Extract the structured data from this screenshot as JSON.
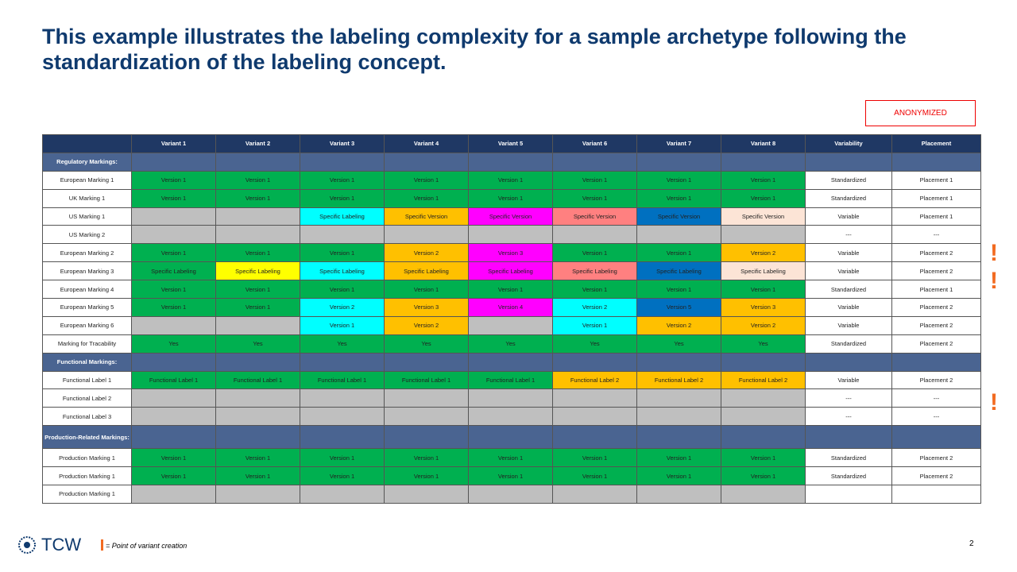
{
  "title": "This example illustrates the labeling complexity for a sample archetype following the standardization of the labeling concept.",
  "badge": "ANONYMIZED",
  "table": {
    "header": [
      "Variant 1",
      "Variant 2",
      "Variant 3",
      "Variant 4",
      "Variant 5",
      "Variant 6",
      "Variant 7",
      "Variant 8",
      "Variability",
      "Placement"
    ],
    "sections": [
      {
        "title": "Regulatory Markings:",
        "rows": [
          {
            "label": "European Marking 1",
            "cells": [
              {
                "text": "Version 1",
                "color": "#00b050"
              },
              {
                "text": "Version 1",
                "color": "#00b050"
              },
              {
                "text": "Version 1",
                "color": "#00b050"
              },
              {
                "text": "Version 1",
                "color": "#00b050"
              },
              {
                "text": "Version 1",
                "color": "#00b050"
              },
              {
                "text": "Version 1",
                "color": "#00b050"
              },
              {
                "text": "Version 1",
                "color": "#00b050"
              },
              {
                "text": "Version 1",
                "color": "#00b050"
              },
              {
                "text": "Standardized",
                "color": "#ffffff"
              },
              {
                "text": "Placement 1",
                "color": "#ffffff"
              }
            ]
          },
          {
            "label": "UK Marking 1",
            "cells": [
              {
                "text": "Version 1",
                "color": "#00b050"
              },
              {
                "text": "Version 1",
                "color": "#00b050"
              },
              {
                "text": "Version 1",
                "color": "#00b050"
              },
              {
                "text": "Version 1",
                "color": "#00b050"
              },
              {
                "text": "Version 1",
                "color": "#00b050"
              },
              {
                "text": "Version 1",
                "color": "#00b050"
              },
              {
                "text": "Version 1",
                "color": "#00b050"
              },
              {
                "text": "Version 1",
                "color": "#00b050"
              },
              {
                "text": "Standardized",
                "color": "#ffffff"
              },
              {
                "text": "Placement 1",
                "color": "#ffffff"
              }
            ]
          },
          {
            "label": "US Marking 1",
            "cells": [
              {
                "color": "#bfbfbf"
              },
              {
                "color": "#bfbfbf"
              },
              {
                "text": "Specific Labeling",
                "color": "#00ffff"
              },
              {
                "text": "Specific Version",
                "color": "#ffc000"
              },
              {
                "text": "Specific Version",
                "color": "#ff00ff"
              },
              {
                "text": "Specific Version",
                "color": "#ff8080"
              },
              {
                "text": "Specific Version",
                "color": "#0070c0"
              },
              {
                "text": "Specific Version",
                "color": "#fce4d6"
              },
              {
                "text": "Variable",
                "color": "#ffffff"
              },
              {
                "text": "Placement 1",
                "color": "#ffffff"
              }
            ]
          },
          {
            "label": "US Marking 2",
            "cells": [
              {
                "color": "#bfbfbf"
              },
              {
                "color": "#bfbfbf"
              },
              {
                "color": "#bfbfbf"
              },
              {
                "color": "#bfbfbf"
              },
              {
                "color": "#bfbfbf"
              },
              {
                "color": "#bfbfbf"
              },
              {
                "color": "#bfbfbf"
              },
              {
                "color": "#bfbfbf"
              },
              {
                "text": "---",
                "color": "#ffffff"
              },
              {
                "text": "---",
                "color": "#ffffff"
              }
            ]
          },
          {
            "label": "European Marking 2",
            "cells": [
              {
                "text": "Version 1",
                "color": "#00b050"
              },
              {
                "text": "Version 1",
                "color": "#00b050"
              },
              {
                "text": "Version 1",
                "color": "#00b050"
              },
              {
                "text": "Version 2",
                "color": "#ffc000"
              },
              {
                "text": "Version 3",
                "color": "#ff00ff"
              },
              {
                "text": "Version 1",
                "color": "#00b050"
              },
              {
                "text": "Version 1",
                "color": "#00b050"
              },
              {
                "text": "Version 2",
                "color": "#ffc000"
              },
              {
                "text": "Variable",
                "color": "#ffffff"
              },
              {
                "text": "Placement 2",
                "color": "#ffffff"
              }
            ]
          },
          {
            "label": "European Marking 3",
            "cells": [
              {
                "text": "Specific Labeling",
                "color": "#00b050"
              },
              {
                "text": "Specific Labeling",
                "color": "#ffff00"
              },
              {
                "text": "Specific Labeling",
                "color": "#00ffff"
              },
              {
                "text": "Specific Labeling",
                "color": "#ffc000"
              },
              {
                "text": "Specific Labeling",
                "color": "#ff00ff"
              },
              {
                "text": "Specific Labeling",
                "color": "#ff8080"
              },
              {
                "text": "Specific Labeling",
                "color": "#0070c0"
              },
              {
                "text": "Specific Labeling",
                "color": "#fce4d6"
              },
              {
                "text": "Variable",
                "color": "#ffffff"
              },
              {
                "text": "Placement 2",
                "color": "#ffffff"
              }
            ]
          },
          {
            "label": "European Marking 4",
            "cells": [
              {
                "text": "Version 1",
                "color": "#00b050"
              },
              {
                "text": "Version 1",
                "color": "#00b050"
              },
              {
                "text": "Version 1",
                "color": "#00b050"
              },
              {
                "text": "Version 1",
                "color": "#00b050"
              },
              {
                "text": "Version 1",
                "color": "#00b050"
              },
              {
                "text": "Version 1",
                "color": "#00b050"
              },
              {
                "text": "Version 1",
                "color": "#00b050"
              },
              {
                "text": "Version 1",
                "color": "#00b050"
              },
              {
                "text": "Standardized",
                "color": "#ffffff"
              },
              {
                "text": "Placement 1",
                "color": "#ffffff"
              }
            ]
          },
          {
            "label": "European Marking 5",
            "cells": [
              {
                "text": "Version 1",
                "color": "#00b050"
              },
              {
                "text": "Version 1",
                "color": "#00b050"
              },
              {
                "text": "Version 2",
                "color": "#00ffff"
              },
              {
                "text": "Version 3",
                "color": "#ffc000"
              },
              {
                "text": "Version 4",
                "color": "#ff00ff"
              },
              {
                "text": "Version 2",
                "color": "#00ffff"
              },
              {
                "text": "Version 5",
                "color": "#0070c0"
              },
              {
                "text": "Version 3",
                "color": "#ffc000"
              },
              {
                "text": "Variable",
                "color": "#ffffff"
              },
              {
                "text": "Placement 2",
                "color": "#ffffff"
              }
            ]
          },
          {
            "label": "European Marking 6",
            "cells": [
              {
                "color": "#bfbfbf"
              },
              {
                "color": "#bfbfbf"
              },
              {
                "text": "Version 1",
                "color": "#00ffff"
              },
              {
                "text": "Version 2",
                "color": "#ffc000"
              },
              {
                "color": "#bfbfbf"
              },
              {
                "text": "Version 1",
                "color": "#00ffff"
              },
              {
                "text": "Version 2",
                "color": "#ffc000"
              },
              {
                "text": "Version 2",
                "color": "#ffc000"
              },
              {
                "text": "Variable",
                "color": "#ffffff"
              },
              {
                "text": "Placement 2",
                "color": "#ffffff"
              }
            ]
          },
          {
            "label": "Marking for Tracability",
            "cells": [
              {
                "text": "Yes",
                "color": "#00b050"
              },
              {
                "text": "Yes",
                "color": "#00b050"
              },
              {
                "text": "Yes",
                "color": "#00b050"
              },
              {
                "text": "Yes",
                "color": "#00b050"
              },
              {
                "text": "Yes",
                "color": "#00b050"
              },
              {
                "text": "Yes",
                "color": "#00b050"
              },
              {
                "text": "Yes",
                "color": "#00b050"
              },
              {
                "text": "Yes",
                "color": "#00b050"
              },
              {
                "text": "Standardized",
                "color": "#ffffff"
              },
              {
                "text": "Placement 2",
                "color": "#ffffff"
              }
            ]
          }
        ]
      },
      {
        "title": "Functional Markings:",
        "rows": [
          {
            "label": "Functional Label 1",
            "cells": [
              {
                "text": "Functional Label 1",
                "color": "#00b050"
              },
              {
                "text": "Functional Label 1",
                "color": "#00b050"
              },
              {
                "text": "Functional Label 1",
                "color": "#00b050"
              },
              {
                "text": "Functional Label 1",
                "color": "#00b050"
              },
              {
                "text": "Functional Label 1",
                "color": "#00b050"
              },
              {
                "text": "Functional Label 2",
                "color": "#ffc000"
              },
              {
                "text": "Functional Label 2",
                "color": "#ffc000"
              },
              {
                "text": "Functional Label 2",
                "color": "#ffc000"
              },
              {
                "text": "Variable",
                "color": "#ffffff"
              },
              {
                "text": "Placement 2",
                "color": "#ffffff"
              }
            ]
          },
          {
            "label": "Functional Label 2",
            "cells": [
              {
                "color": "#bfbfbf"
              },
              {
                "color": "#bfbfbf"
              },
              {
                "color": "#bfbfbf"
              },
              {
                "color": "#bfbfbf"
              },
              {
                "color": "#bfbfbf"
              },
              {
                "color": "#bfbfbf"
              },
              {
                "color": "#bfbfbf"
              },
              {
                "color": "#bfbfbf"
              },
              {
                "text": "---",
                "color": "#ffffff"
              },
              {
                "text": "---",
                "color": "#ffffff"
              }
            ]
          },
          {
            "label": "Functional Label 3",
            "cells": [
              {
                "color": "#bfbfbf"
              },
              {
                "color": "#bfbfbf"
              },
              {
                "color": "#bfbfbf"
              },
              {
                "color": "#bfbfbf"
              },
              {
                "color": "#bfbfbf"
              },
              {
                "color": "#bfbfbf"
              },
              {
                "color": "#bfbfbf"
              },
              {
                "color": "#bfbfbf"
              },
              {
                "text": "---",
                "color": "#ffffff"
              },
              {
                "text": "---",
                "color": "#ffffff"
              }
            ]
          }
        ]
      },
      {
        "title": "Production-Related Markings:",
        "rows": [
          {
            "label": "Production Marking 1",
            "cells": [
              {
                "text": "Version 1",
                "color": "#00b050"
              },
              {
                "text": "Version 1",
                "color": "#00b050"
              },
              {
                "text": "Version 1",
                "color": "#00b050"
              },
              {
                "text": "Version 1",
                "color": "#00b050"
              },
              {
                "text": "Version 1",
                "color": "#00b050"
              },
              {
                "text": "Version 1",
                "color": "#00b050"
              },
              {
                "text": "Version 1",
                "color": "#00b050"
              },
              {
                "text": "Version 1",
                "color": "#00b050"
              },
              {
                "text": "Standardized",
                "color": "#ffffff"
              },
              {
                "text": "Placement 2",
                "color": "#ffffff"
              }
            ]
          },
          {
            "label": "Production Marking 1",
            "cells": [
              {
                "text": "Version 1",
                "color": "#00b050"
              },
              {
                "text": "Version 1",
                "color": "#00b050"
              },
              {
                "text": "Version 1",
                "color": "#00b050"
              },
              {
                "text": "Version 1",
                "color": "#00b050"
              },
              {
                "text": "Version 1",
                "color": "#00b050"
              },
              {
                "text": "Version 1",
                "color": "#00b050"
              },
              {
                "text": "Version 1",
                "color": "#00b050"
              },
              {
                "text": "Version 1",
                "color": "#00b050"
              },
              {
                "text": "Standardized",
                "color": "#ffffff"
              },
              {
                "text": "Placement 2",
                "color": "#ffffff"
              }
            ]
          },
          {
            "label": "Production Marking 1",
            "cells": [
              {
                "color": "#bfbfbf"
              },
              {
                "color": "#bfbfbf"
              },
              {
                "color": "#bfbfbf"
              },
              {
                "color": "#bfbfbf"
              },
              {
                "color": "#bfbfbf"
              },
              {
                "color": "#bfbfbf"
              },
              {
                "color": "#bfbfbf"
              },
              {
                "color": "#bfbfbf"
              },
              {
                "color": "#ffffff"
              },
              {
                "color": "#ffffff"
              }
            ]
          }
        ]
      }
    ]
  },
  "footer": {
    "logo": "TCW",
    "legend": "= Point of variant creation",
    "page": "2"
  }
}
